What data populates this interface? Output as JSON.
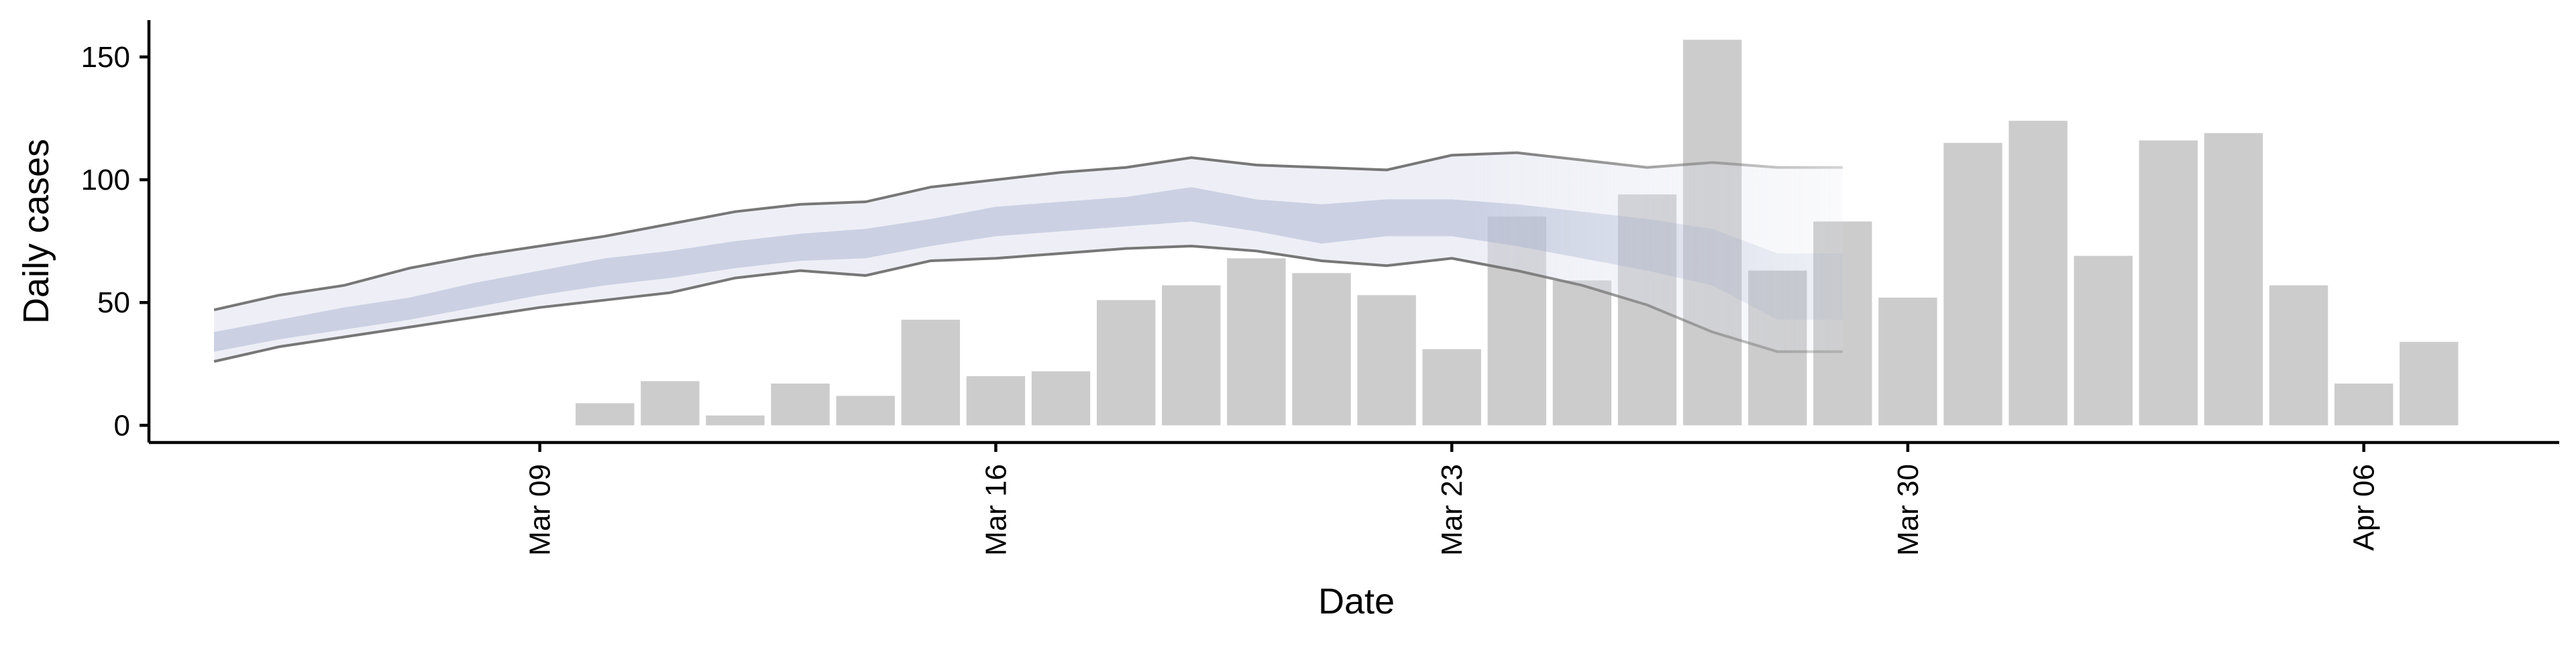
{
  "chart_data": {
    "type": "bar",
    "title": "",
    "xlabel": "Date",
    "ylabel": "Daily cases",
    "ylim": [
      -7,
      165
    ],
    "yticks": [
      0,
      50,
      100,
      150
    ],
    "xticks": [
      {
        "date": "2020-03-09",
        "label": "Mar 09"
      },
      {
        "date": "2020-03-16",
        "label": "Mar 16"
      },
      {
        "date": "2020-03-23",
        "label": "Mar 23"
      },
      {
        "date": "2020-03-30",
        "label": "Mar 30"
      },
      {
        "date": "2020-04-06",
        "label": "Apr 06"
      }
    ],
    "xlim": [
      "2020-03-03",
      "2020-04-09"
    ],
    "grid": false,
    "legend": "none",
    "colors": {
      "bars": "#cccccc",
      "outer_band": "#dde0ee",
      "inner_band": "#aab3d2",
      "band_edge": "#777777"
    },
    "bars": [
      {
        "date": "2020-03-10",
        "value": 9
      },
      {
        "date": "2020-03-11",
        "value": 18
      },
      {
        "date": "2020-03-12",
        "value": 4
      },
      {
        "date": "2020-03-13",
        "value": 17
      },
      {
        "date": "2020-03-14",
        "value": 12
      },
      {
        "date": "2020-03-15",
        "value": 43
      },
      {
        "date": "2020-03-16",
        "value": 20
      },
      {
        "date": "2020-03-17",
        "value": 22
      },
      {
        "date": "2020-03-18",
        "value": 51
      },
      {
        "date": "2020-03-19",
        "value": 57
      },
      {
        "date": "2020-03-20",
        "value": 68
      },
      {
        "date": "2020-03-21",
        "value": 62
      },
      {
        "date": "2020-03-22",
        "value": 53
      },
      {
        "date": "2020-03-23",
        "value": 31
      },
      {
        "date": "2020-03-24",
        "value": 85
      },
      {
        "date": "2020-03-25",
        "value": 59
      },
      {
        "date": "2020-03-26",
        "value": 94
      },
      {
        "date": "2020-03-27",
        "value": 157
      },
      {
        "date": "2020-03-28",
        "value": 63
      },
      {
        "date": "2020-03-29",
        "value": 83
      },
      {
        "date": "2020-03-30",
        "value": 52
      },
      {
        "date": "2020-03-31",
        "value": 115
      },
      {
        "date": "2020-04-01",
        "value": 124
      },
      {
        "date": "2020-04-02",
        "value": 69
      },
      {
        "date": "2020-04-03",
        "value": 116
      },
      {
        "date": "2020-04-04",
        "value": 119
      },
      {
        "date": "2020-04-05",
        "value": 57
      },
      {
        "date": "2020-04-06",
        "value": 17
      },
      {
        "date": "2020-04-07",
        "value": 34
      }
    ],
    "bands": {
      "dates": [
        "2020-03-04",
        "2020-03-05",
        "2020-03-06",
        "2020-03-07",
        "2020-03-08",
        "2020-03-09",
        "2020-03-10",
        "2020-03-11",
        "2020-03-12",
        "2020-03-13",
        "2020-03-14",
        "2020-03-15",
        "2020-03-16",
        "2020-03-17",
        "2020-03-18",
        "2020-03-19",
        "2020-03-20",
        "2020-03-21",
        "2020-03-22",
        "2020-03-23",
        "2020-03-24",
        "2020-03-25",
        "2020-03-26",
        "2020-03-27",
        "2020-03-28",
        "2020-03-29"
      ],
      "outer_upper": [
        47,
        53,
        57,
        64,
        69,
        73,
        77,
        82,
        87,
        90,
        91,
        97,
        100,
        103,
        105,
        109,
        106,
        105,
        104,
        110,
        111,
        108,
        105,
        107,
        105,
        105
      ],
      "outer_lower": [
        26,
        32,
        36,
        40,
        44,
        48,
        51,
        54,
        60,
        63,
        61,
        67,
        68,
        70,
        72,
        73,
        71,
        67,
        65,
        68,
        63,
        57,
        49,
        38,
        30,
        30
      ],
      "inner_upper": [
        38,
        43,
        48,
        52,
        58,
        63,
        68,
        71,
        75,
        78,
        80,
        84,
        89,
        91,
        93,
        97,
        92,
        90,
        92,
        92,
        90,
        87,
        84,
        80,
        70,
        70
      ],
      "inner_lower": [
        30,
        35,
        39,
        43,
        48,
        53,
        57,
        60,
        64,
        67,
        68,
        73,
        77,
        79,
        81,
        83,
        79,
        74,
        77,
        77,
        73,
        68,
        63,
        57,
        43,
        43
      ]
    }
  }
}
